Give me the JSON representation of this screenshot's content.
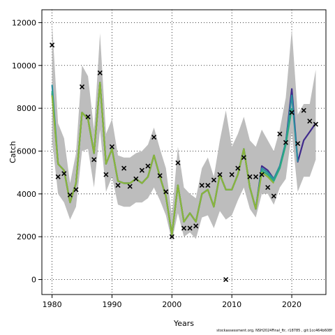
{
  "chart_data": {
    "type": "line",
    "title": "",
    "xlabel": "Years",
    "ylabel": "Catch",
    "xlim": [
      1978.3,
      2025.7
    ],
    "ylim": [
      -700,
      12600
    ],
    "xticks": [
      1980,
      1990,
      2000,
      2010,
      2020
    ],
    "yticks": [
      0,
      2000,
      4000,
      6000,
      8000,
      10000,
      12000
    ],
    "grid": true,
    "x": [
      1980,
      1981,
      1982,
      1983,
      1984,
      1985,
      1986,
      1987,
      1988,
      1989,
      1990,
      1991,
      1992,
      1993,
      1994,
      1995,
      1996,
      1997,
      1998,
      1999,
      2000,
      2001,
      2002,
      2003,
      2004,
      2005,
      2006,
      2007,
      2008,
      2009,
      2010,
      2011,
      2012,
      2013,
      2014,
      2015,
      2016,
      2017,
      2018,
      2019,
      2020,
      2021,
      2022,
      2023,
      2024
    ],
    "band_upper": [
      12000,
      7300,
      6600,
      4500,
      5900,
      10000,
      9500,
      7000,
      11500,
      6800,
      7500,
      5800,
      5700,
      5700,
      5900,
      6000,
      6300,
      7100,
      6100,
      5200,
      3000,
      6200,
      4300,
      4000,
      3800,
      5200,
      5700,
      4800,
      6500,
      7900,
      6200,
      6800,
      7600,
      6500,
      6200,
      7000,
      6500,
      6000,
      7000,
      8500,
      11700,
      7700,
      8200,
      8200,
      9800
    ],
    "band_lower": [
      6500,
      4000,
      3600,
      2800,
      3400,
      6000,
      6100,
      4300,
      7000,
      4100,
      4800,
      3500,
      3400,
      3400,
      3600,
      3600,
      3800,
      4300,
      3700,
      3000,
      1800,
      3100,
      2000,
      2200,
      1900,
      2900,
      3000,
      2400,
      3200,
      2800,
      3000,
      3700,
      4300,
      3300,
      2900,
      4000,
      4000,
      3500,
      4300,
      4700,
      6900,
      4100,
      4800,
      4800,
      5600
    ],
    "series": [
      {
        "color": "#3f2a8c",
        "values": [
          8700,
          5400,
          5100,
          3600,
          4500,
          7800,
          7500,
          5900,
          9200,
          5400,
          6100,
          4600,
          4500,
          4500,
          4700,
          4500,
          4800,
          5800,
          4800,
          3900,
          2100,
          4400,
          2700,
          3100,
          2700,
          4000,
          4200,
          3400,
          4900,
          4200,
          4200,
          4900,
          6100,
          4300,
          3300,
          5300,
          5100,
          4700,
          5300,
          6400,
          8900,
          5500,
          6500,
          6900,
          7300
        ]
      },
      {
        "color": "#2b8fa0",
        "values": [
          9100,
          5400,
          5100,
          3600,
          4500,
          7800,
          7500,
          5900,
          9200,
          5400,
          6100,
          4600,
          4500,
          4500,
          4700,
          4500,
          4800,
          5800,
          4800,
          3900,
          2100,
          4400,
          2700,
          3100,
          2700,
          4000,
          4200,
          3400,
          4900,
          4200,
          4200,
          4900,
          6100,
          4300,
          3300,
          5200,
          5000,
          4700,
          5300,
          6400,
          8600,
          5500,
          null,
          null,
          null
        ]
      },
      {
        "color": "#2aa882",
        "values": [
          8800,
          5400,
          5100,
          3600,
          4500,
          7800,
          7500,
          5900,
          9200,
          5400,
          6100,
          4600,
          4500,
          4500,
          4700,
          4500,
          4800,
          5800,
          4800,
          3900,
          2100,
          4400,
          2700,
          3100,
          2700,
          4000,
          4200,
          3400,
          4900,
          4200,
          4200,
          4900,
          6100,
          4300,
          3300,
          5100,
          4900,
          4600,
          5200,
          6300,
          8000,
          null,
          null,
          null,
          null
        ]
      },
      {
        "color": "#8cb43a",
        "values": [
          8600,
          5400,
          5100,
          3600,
          4500,
          7800,
          7500,
          5900,
          9200,
          5400,
          6100,
          4600,
          4500,
          4500,
          4700,
          4500,
          4800,
          5800,
          4800,
          3900,
          2100,
          4400,
          2700,
          3100,
          2700,
          4000,
          4200,
          3400,
          4900,
          4200,
          4200,
          4900,
          6100,
          4300,
          3300,
          5000,
          4800,
          4500,
          null,
          null,
          null,
          null,
          null,
          null,
          null
        ]
      }
    ],
    "observed": {
      "marker": "x",
      "x": [
        1980,
        1981,
        1982,
        1983,
        1984,
        1985,
        1986,
        1987,
        1988,
        1989,
        1990,
        1991,
        1992,
        1993,
        1994,
        1995,
        1996,
        1997,
        1998,
        1999,
        2000,
        2001,
        2002,
        2003,
        2004,
        2005,
        2006,
        2007,
        2008,
        2009,
        2010,
        2011,
        2012,
        2013,
        2014,
        2015,
        2016,
        2017,
        2018,
        2019,
        2020,
        2021,
        2022,
        2023,
        2024
      ],
      "y": [
        10950,
        4800,
        4950,
        3950,
        4200,
        9000,
        7600,
        5600,
        9650,
        4900,
        6200,
        4400,
        5200,
        4350,
        4700,
        5100,
        5300,
        6650,
        4850,
        4100,
        2000,
        5450,
        2400,
        2400,
        2500,
        4400,
        4400,
        4650,
        4900,
        0,
        4900,
        5200,
        5700,
        4800,
        4800,
        4900,
        4300,
        3900,
        6800,
        6400,
        7800,
        6350,
        7900,
        7400,
        7250
      ]
    }
  },
  "footer": {
    "text": "stockassessment.org, NSH2024Final_ftr, r18785 , git:1cc464b608f"
  }
}
